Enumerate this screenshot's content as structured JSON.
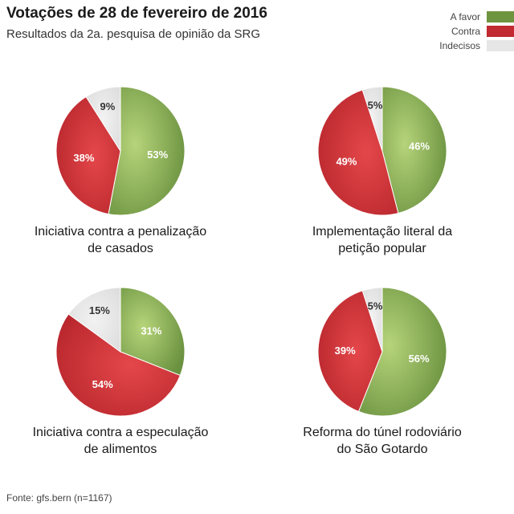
{
  "header": {
    "title": "Votações de 28 de fevereiro de 2016",
    "subtitle": "Resultados da 2a. pesquisa de opinião da SRG"
  },
  "legend": [
    {
      "label": "A favor",
      "color": "#6f9440"
    },
    {
      "label": "Contra",
      "color": "#c02a30"
    },
    {
      "label": "Indecisos",
      "color": "#e6e6e6"
    }
  ],
  "chart_data": [
    {
      "type": "pie",
      "title": "Iniciativa contra a penalização\nde casados",
      "slices": [
        {
          "label": "A favor",
          "value": 53,
          "text": "53%"
        },
        {
          "label": "Contra",
          "value": 38,
          "text": "38%"
        },
        {
          "label": "Indecisos",
          "value": 9,
          "text": "9%"
        }
      ]
    },
    {
      "type": "pie",
      "title": "Implementação literal da\npetição popular",
      "slices": [
        {
          "label": "A favor",
          "value": 46,
          "text": "46%"
        },
        {
          "label": "Contra",
          "value": 49,
          "text": "49%"
        },
        {
          "label": "Indecisos",
          "value": 5,
          "text": "5%"
        }
      ]
    },
    {
      "type": "pie",
      "title": "Iniciativa contra a especulação\nde alimentos",
      "slices": [
        {
          "label": "A favor",
          "value": 31,
          "text": "31%"
        },
        {
          "label": "Contra",
          "value": 54,
          "text": "54%"
        },
        {
          "label": "Indecisos",
          "value": 15,
          "text": "15%"
        }
      ]
    },
    {
      "type": "pie",
      "title": "Reforma do túnel rodoviário\ndo São Gotardo",
      "slices": [
        {
          "label": "A favor",
          "value": 56,
          "text": "56%"
        },
        {
          "label": "Contra",
          "value": 39,
          "text": "39%"
        },
        {
          "label": "Indecisos",
          "value": 5,
          "text": "5%"
        }
      ]
    }
  ],
  "footer": {
    "source": "Fonte: gfs.bern (n=1167)"
  }
}
